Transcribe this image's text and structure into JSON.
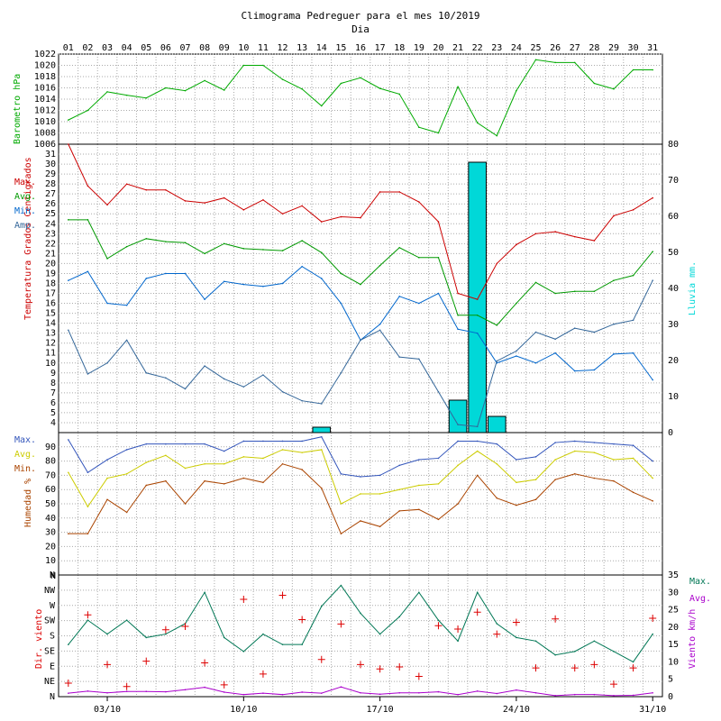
{
  "title": "Climograma Pedreguer para el mes 10/2019",
  "top_axis_label": "Dia",
  "days": [
    "01",
    "02",
    "03",
    "04",
    "05",
    "06",
    "07",
    "08",
    "09",
    "10",
    "11",
    "12",
    "13",
    "14",
    "15",
    "16",
    "17",
    "18",
    "19",
    "20",
    "21",
    "22",
    "23",
    "24",
    "25",
    "26",
    "27",
    "28",
    "29",
    "30",
    "31"
  ],
  "bottom_dates": [
    "03/10",
    "10/10",
    "17/10",
    "24/10",
    "31/10"
  ],
  "colors": {
    "max": "#cc0000",
    "avg": "#009900",
    "min": "#0066cc",
    "amp": "#336699",
    "rain": "#00d8d8",
    "baro": "#00aa00",
    "h_max": "#3355bb",
    "h_avg": "#cccc00",
    "h_min": "#aa4400",
    "w_max": "#007755",
    "w_avg": "#aa00cc",
    "w_dir": "#dd0000"
  },
  "chart_data": [
    {
      "type": "line",
      "name": "barometer",
      "ylabel": "Barometro hPa",
      "ylim": [
        1006,
        1022
      ],
      "yticks": [
        1008,
        1010,
        1012,
        1014,
        1016,
        1018,
        1020,
        1022
      ],
      "ytick_labels": [
        "1008",
        "1010",
        "1012",
        "1014",
        "1016",
        "1018",
        "1020",
        "1022"
      ],
      "ytick_labels_extra": [
        "1006"
      ],
      "values": [
        1010.3,
        1012,
        1015.3,
        1014.7,
        1014.2,
        1016,
        1015.5,
        1017.3,
        1015.6,
        1020,
        1020,
        1017.5,
        1015.8,
        1012.8,
        1016.8,
        1017.8,
        1015.9,
        1014.9,
        1009,
        1008,
        1016.2,
        1009.8,
        1007.5,
        1015.5,
        1021,
        1020.5,
        1020.5,
        1016.8,
        1015.8,
        1019.2,
        1019.2
      ]
    },
    {
      "type": "line",
      "name": "temperature",
      "ylabel": "Temperatura Grados Centigrados",
      "ylabel_line2": "Grados Centigrados",
      "ylim": [
        3,
        32
      ],
      "yticks": [
        4,
        5,
        6,
        7,
        8,
        9,
        10,
        11,
        12,
        13,
        14,
        15,
        16,
        17,
        18,
        19,
        20,
        21,
        22,
        23,
        24,
        25,
        26,
        27,
        28,
        29,
        30,
        31
      ],
      "ytick_labels": [
        "4",
        "5",
        "6",
        "7",
        "8",
        "9",
        "10",
        "11",
        "12",
        "13",
        "14",
        "15",
        "16",
        "17",
        "18",
        "19",
        "20",
        "21",
        "22",
        "23",
        "24",
        "25",
        "26",
        "27",
        "28",
        "29",
        "30",
        "31"
      ],
      "y2label": "Lluvia mm.",
      "y2lim": [
        0,
        80
      ],
      "y2ticks": [
        0,
        10,
        20,
        30,
        40,
        50,
        60,
        70,
        80
      ],
      "y2tick_labels": [
        "0",
        "10",
        "20",
        "30",
        "40",
        "50",
        "60",
        "70",
        "80"
      ],
      "legend": [
        "Max.",
        "Avg.",
        "Min.",
        "Amp."
      ],
      "series": [
        {
          "name": "Max.",
          "values": [
            32,
            27.8,
            25.9,
            28,
            27.4,
            27.4,
            26.3,
            26.1,
            26.6,
            25.4,
            26.4,
            25,
            25.8,
            24.2,
            24.7,
            24.6,
            27.2,
            27.2,
            26.2,
            24.2,
            17,
            16.4,
            20,
            21.9,
            23,
            23.2,
            22.7,
            22.3,
            24.8,
            25.4,
            26.6
          ]
        },
        {
          "name": "Avg.",
          "values": [
            24.4,
            24.4,
            20.5,
            21.7,
            22.5,
            22.2,
            22.1,
            21,
            22,
            21.5,
            21.4,
            21.3,
            22.3,
            21.1,
            19,
            17.9,
            19.8,
            21.6,
            20.6,
            20.6,
            14.8,
            14.8,
            13.8,
            16,
            18.1,
            17,
            17.2,
            17.2,
            18.3,
            18.8,
            21.2
          ]
        },
        {
          "name": "Min.",
          "values": [
            18.3,
            19.2,
            16,
            15.8,
            18.5,
            19,
            19,
            16.4,
            18.2,
            17.9,
            17.7,
            18,
            19.7,
            18.5,
            16,
            12.3,
            13.9,
            16.7,
            16,
            17,
            13.4,
            13,
            10,
            10.7,
            10,
            11,
            9.2,
            9.3,
            10.9,
            11,
            8.3
          ]
        },
        {
          "name": "Amp.",
          "values": [
            13.3,
            8.9,
            10,
            12.3,
            9,
            8.5,
            7.4,
            9.7,
            8.4,
            7.6,
            8.8,
            7.1,
            6.2,
            5.9,
            9,
            12.3,
            13.3,
            10.6,
            10.4,
            7.1,
            3.8,
            3.6,
            10.2,
            11.2,
            13.1,
            12.4,
            13.5,
            13.1,
            13.9,
            14.3,
            18.3
          ]
        }
      ],
      "rain": [
        0,
        0,
        0,
        0,
        0,
        0,
        0,
        0,
        0,
        0,
        0,
        0,
        0,
        1.5,
        0,
        0,
        0,
        0,
        0,
        0,
        9,
        75,
        4.5,
        0,
        0,
        0,
        0,
        0,
        0,
        0,
        0
      ]
    },
    {
      "type": "line",
      "name": "humidity",
      "ylabel": "Humedad %",
      "ylim": [
        0,
        100
      ],
      "yticks": [
        10,
        20,
        30,
        40,
        50,
        60,
        70,
        80,
        90
      ],
      "ytick_labels": [
        "10",
        "20",
        "30",
        "40",
        "50",
        "60",
        "70",
        "80",
        "90"
      ],
      "ytick_extra_label": "N",
      "legend": [
        "Max.",
        "Avg.",
        "Min."
      ],
      "series": [
        {
          "name": "Max.",
          "values": [
            95,
            72,
            81,
            88,
            92,
            92,
            92,
            92,
            87,
            94,
            94,
            94,
            94,
            97,
            71,
            69,
            70,
            77,
            81,
            82,
            94,
            94,
            92,
            81,
            83,
            93,
            94,
            93,
            92,
            91,
            80
          ]
        },
        {
          "name": "Avg.",
          "values": [
            72,
            48,
            68,
            71,
            79,
            84,
            75,
            78,
            78,
            83,
            82,
            88,
            86,
            88,
            50,
            57,
            57,
            60,
            63,
            64,
            77,
            87,
            78,
            65,
            67,
            81,
            87,
            86,
            81,
            82,
            68
          ]
        },
        {
          "name": "Min.",
          "values": [
            29,
            29,
            53,
            44,
            63,
            66,
            50,
            66,
            64,
            68,
            65,
            78,
            74,
            61,
            29,
            38,
            34,
            45,
            46,
            39,
            50,
            70,
            54,
            49,
            53,
            67,
            71,
            68,
            66,
            58,
            52
          ]
        }
      ]
    },
    {
      "type": "line",
      "name": "wind",
      "ylabel": "Dir. viento",
      "y2label": "Viento km/h",
      "direction_ticks": [
        "N",
        "NE",
        "E",
        "SE",
        "S",
        "SW",
        "W",
        "NW",
        "N"
      ],
      "ylim_speed": [
        0,
        35
      ],
      "y2ticks": [
        0,
        5,
        10,
        15,
        20,
        25,
        30,
        35
      ],
      "y2tick_labels": [
        "0",
        "5",
        "10",
        "15",
        "20",
        "25",
        "30",
        "35"
      ],
      "legend": [
        "Max.",
        "Avg."
      ],
      "series": [
        {
          "name": "Max.",
          "values": [
            15,
            22,
            18,
            22,
            17,
            18,
            21,
            30,
            17,
            13,
            18,
            15,
            15,
            26,
            32,
            24,
            18,
            23,
            30,
            22,
            16,
            30,
            21,
            17,
            16,
            12,
            13,
            16,
            13,
            10,
            18
          ]
        },
        {
          "name": "Avg.",
          "values": [
            1,
            1.6,
            1.1,
            1.5,
            1.5,
            1.4,
            2,
            2.7,
            1.3,
            0.6,
            1,
            0.6,
            1.3,
            1,
            2.8,
            1.1,
            0.7,
            1.1,
            1.1,
            1.4,
            0.6,
            1.6,
            0.9,
            1.9,
            1.1,
            0.3,
            0.6,
            0.6,
            0.3,
            0.4,
            1.1
          ]
        }
      ],
      "direction_deg": [
        40,
        242,
        95,
        30,
        105,
        198,
        208,
        100,
        35,
        288,
        67,
        300,
        228,
        110,
        215,
        95,
        82,
        88,
        60,
        210,
        200,
        250,
        185,
        220,
        85,
        230,
        85,
        95,
        37,
        85,
        232
      ]
    }
  ]
}
